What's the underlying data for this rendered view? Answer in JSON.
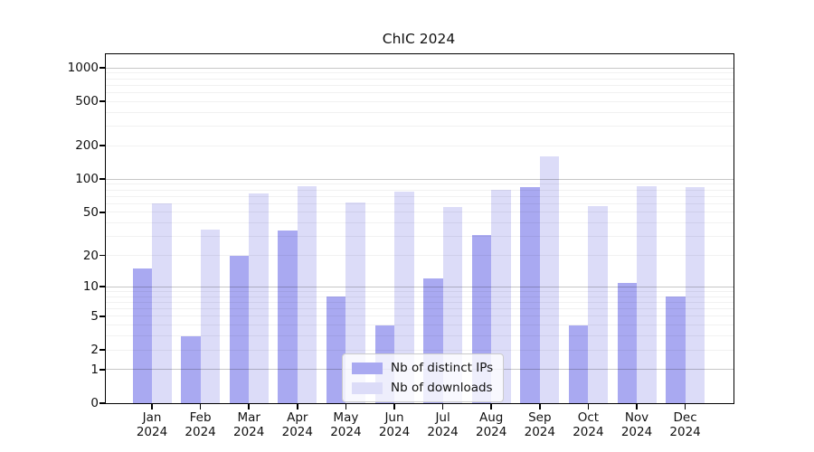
{
  "title": "ChIC 2024",
  "chart_data": {
    "type": "bar",
    "title": "ChIC 2024",
    "categories": [
      "Jan",
      "Feb",
      "Mar",
      "Apr",
      "May",
      "Jun",
      "Jul",
      "Aug",
      "Sep",
      "Oct",
      "Nov",
      "Dec"
    ],
    "category_year": "2024",
    "series": [
      {
        "name": "Nb of distinct IPs",
        "color": "#a9a9f1",
        "values": [
          15,
          3,
          20,
          34,
          8,
          4,
          12,
          31,
          85,
          4,
          11,
          8
        ]
      },
      {
        "name": "Nb of downloads",
        "color": "#dcdcf8",
        "values": [
          60,
          35,
          74,
          87,
          62,
          77,
          56,
          80,
          160,
          57,
          87,
          84
        ]
      }
    ],
    "xlabel": "",
    "ylabel": "",
    "yscale": "log1p",
    "ylim": [
      0,
      1300
    ],
    "yticks": [
      1000,
      500,
      200,
      100,
      50,
      20,
      10,
      5,
      2,
      1,
      0
    ],
    "grid": {
      "orientation": "horizontal",
      "major_at": [
        1,
        10,
        100,
        1000
      ],
      "minor_multiples": [
        2,
        3,
        4,
        5,
        6,
        7,
        8,
        9
      ]
    },
    "legend": {
      "position": "lower center",
      "items": [
        "Nb of distinct IPs",
        "Nb of downloads"
      ]
    }
  }
}
